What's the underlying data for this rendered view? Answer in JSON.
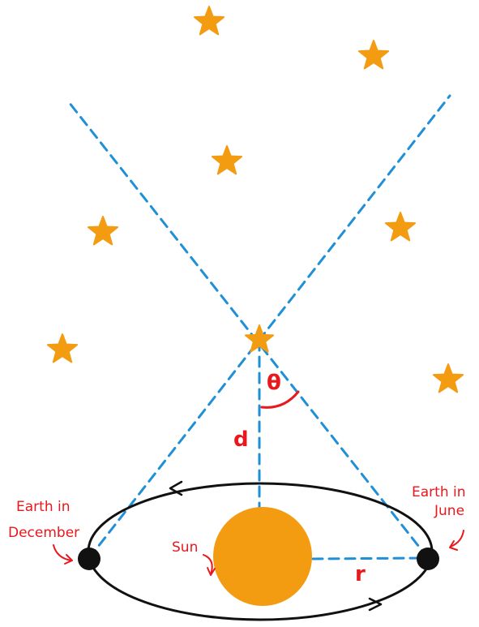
{
  "colors": {
    "star": "#f39c12",
    "sun": "#f39c12",
    "sightline": "#1f8fd6",
    "annotation": "#e8181c",
    "orbit": "#111111"
  },
  "labels": {
    "earth_december_line1": "Earth in",
    "earth_december_line2": "December",
    "earth_june_line1": "Earth in",
    "earth_june_line2": "June",
    "sun": "Sun",
    "distance": "d",
    "angle": "θ",
    "radius": "r"
  }
}
